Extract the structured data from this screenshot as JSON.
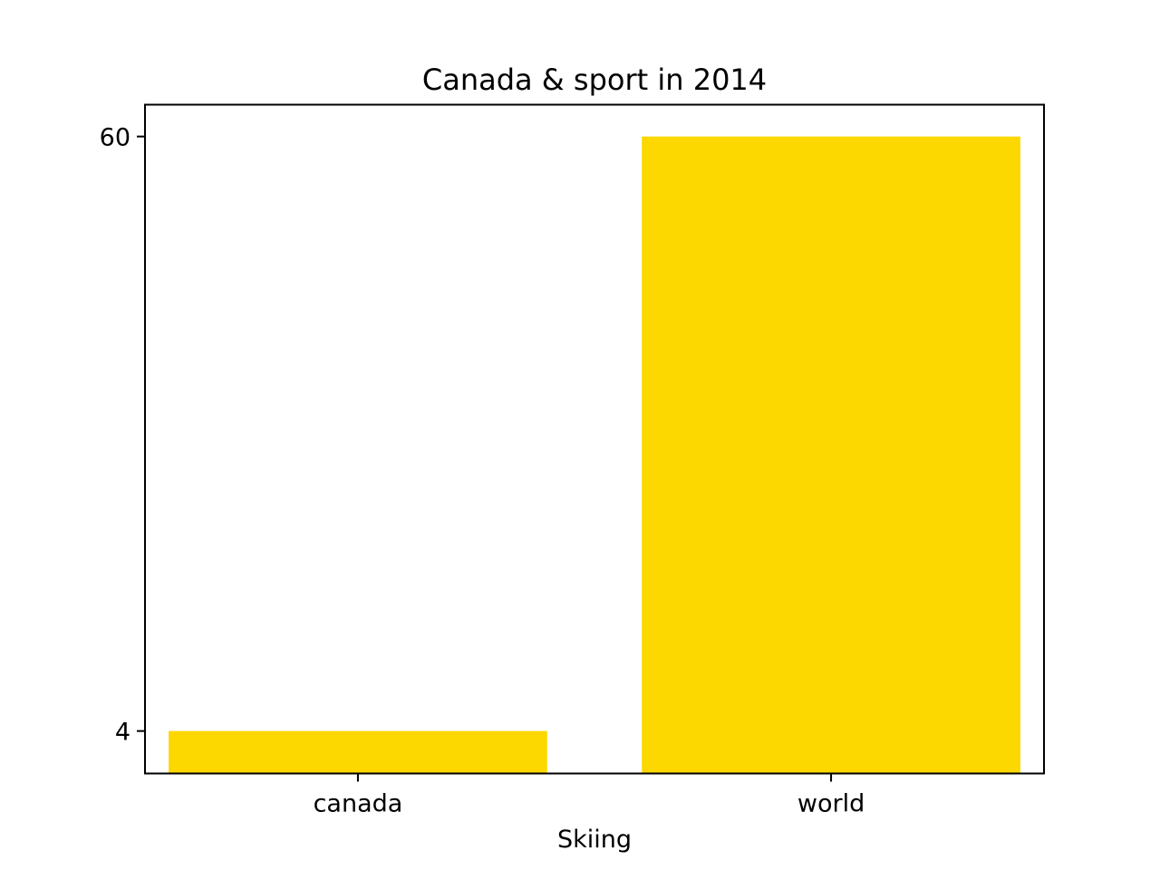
{
  "chart_data": {
    "type": "bar",
    "title": "Canada & sport in 2014",
    "xlabel": "Skiing",
    "ylabel": "",
    "categories": [
      "canada",
      "world"
    ],
    "values": [
      4,
      60
    ],
    "ylim": [
      0,
      63
    ],
    "yticks": [
      4,
      60
    ],
    "bar_color": "#fcd700",
    "grid": false,
    "legend": "none"
  }
}
